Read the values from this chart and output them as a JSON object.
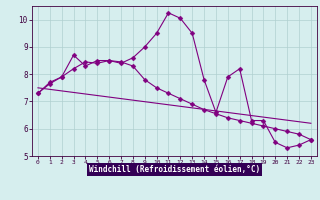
{
  "title": "",
  "xlabel": "Windchill (Refroidissement éolien,°C)",
  "bg_color": "#d6eeee",
  "plot_bg": "#d6eeee",
  "line_color": "#800080",
  "grid_color": "#b0d0d0",
  "spine_color": "#400040",
  "xlabel_bg": "#400060",
  "xlabel_fg": "#ffffff",
  "xlim": [
    -0.5,
    23.5
  ],
  "ylim": [
    5,
    10.5
  ],
  "xticks": [
    0,
    1,
    2,
    3,
    4,
    5,
    6,
    7,
    8,
    9,
    10,
    11,
    12,
    13,
    14,
    15,
    16,
    17,
    18,
    19,
    20,
    21,
    22,
    23
  ],
  "yticks": [
    5,
    6,
    7,
    8,
    9,
    10
  ],
  "line1_x": [
    0,
    1,
    2,
    3,
    4,
    5,
    6,
    7,
    8,
    9,
    10,
    11,
    12,
    13,
    14,
    15,
    16,
    17,
    18,
    19,
    20,
    21,
    22,
    23
  ],
  "line1_y": [
    7.3,
    7.7,
    7.9,
    8.7,
    8.3,
    8.5,
    8.5,
    8.4,
    8.6,
    9.0,
    9.5,
    10.25,
    10.05,
    9.5,
    7.8,
    6.6,
    7.9,
    8.2,
    6.3,
    6.3,
    5.5,
    5.3,
    5.4,
    5.6
  ],
  "line2_x": [
    0,
    1,
    2,
    3,
    4,
    5,
    6,
    7,
    8,
    9,
    10,
    11,
    12,
    13,
    14,
    15,
    16,
    17,
    18,
    19,
    20,
    21,
    22,
    23
  ],
  "line2_y": [
    7.3,
    7.65,
    7.9,
    8.2,
    8.45,
    8.4,
    8.5,
    8.45,
    8.3,
    7.8,
    7.5,
    7.3,
    7.1,
    6.9,
    6.7,
    6.55,
    6.4,
    6.3,
    6.2,
    6.1,
    6.0,
    5.9,
    5.8,
    5.6
  ],
  "line3_x": [
    0,
    23
  ],
  "line3_y": [
    7.5,
    6.2
  ]
}
